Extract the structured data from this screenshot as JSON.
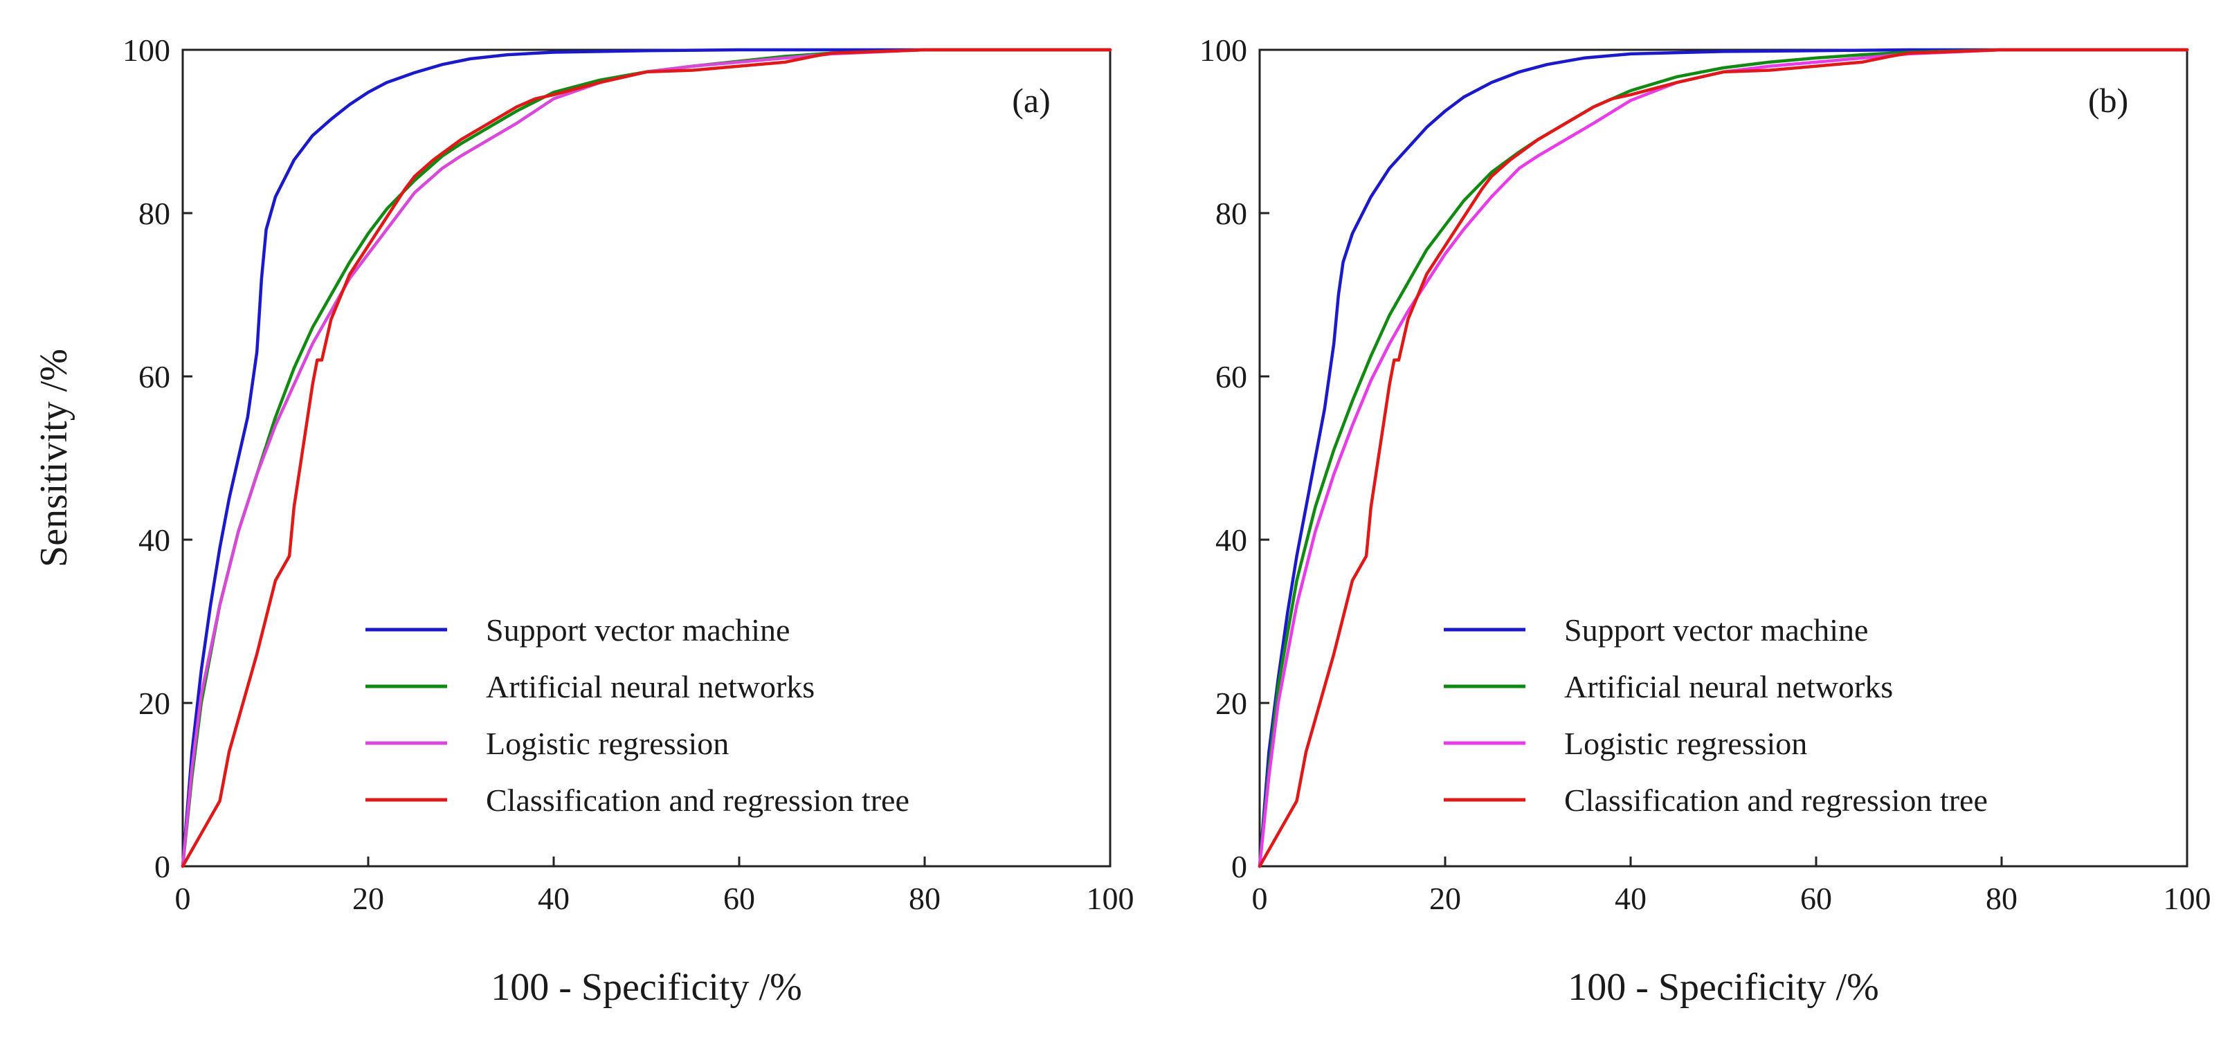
{
  "chart_data": [
    {
      "type": "line",
      "panel_label": "(a)",
      "xlabel": "100 - Specificity /%",
      "ylabel": "Sensitivity /%",
      "xlim": [
        0,
        100
      ],
      "ylim": [
        0,
        100
      ],
      "x_ticks": [
        "0",
        "20",
        "40",
        "60",
        "80",
        "100"
      ],
      "y_ticks": [
        "0",
        "20",
        "40",
        "60",
        "80",
        "100"
      ],
      "grid": false,
      "legend_position": "bottom-right",
      "series": [
        {
          "name": "Support vector machine",
          "color": "#1a1acc",
          "x": [
            0,
            1,
            2,
            3,
            4,
            5,
            6,
            7,
            8,
            8.5,
            9,
            10,
            12,
            14,
            16,
            18,
            20,
            22,
            25,
            28,
            31,
            35,
            40,
            50,
            60,
            70,
            80,
            90,
            100
          ],
          "y": [
            0,
            14,
            24,
            32,
            39,
            45,
            50,
            55,
            63,
            72,
            78,
            82,
            86.5,
            89.5,
            91.5,
            93.3,
            94.8,
            96,
            97.2,
            98.2,
            98.9,
            99.4,
            99.7,
            99.9,
            100,
            100,
            100,
            100,
            100
          ]
        },
        {
          "name": "Artificial neural networks",
          "color": "#108a10",
          "x": [
            0,
            1,
            2,
            4,
            6,
            8,
            10,
            12,
            14,
            16,
            18,
            20,
            22,
            25,
            28,
            30,
            33,
            36,
            40,
            45,
            50,
            55,
            60,
            65,
            70,
            80,
            90,
            100
          ],
          "y": [
            0,
            11,
            20,
            32,
            41,
            48,
            55,
            61,
            66,
            70,
            74,
            77.5,
            80.5,
            84,
            87,
            88.5,
            90.5,
            92.5,
            94.8,
            96.3,
            97.3,
            98,
            98.6,
            99.2,
            99.6,
            100,
            100,
            100
          ]
        },
        {
          "name": "Logistic regression",
          "color": "#d948d9",
          "x": [
            0,
            1,
            2,
            4,
            6,
            8,
            10,
            12,
            14,
            16,
            18,
            20,
            22,
            25,
            28,
            30,
            33,
            36,
            40,
            45,
            50,
            55,
            60,
            65,
            70,
            80,
            90,
            100
          ],
          "y": [
            0,
            12,
            21,
            32,
            41,
            48,
            54,
            59,
            64,
            68,
            72,
            75,
            78,
            82.5,
            85.5,
            87,
            89,
            91,
            94,
            96,
            97.3,
            98,
            98.5,
            99,
            99.5,
            100,
            100,
            100
          ]
        },
        {
          "name": "Classification and regression tree",
          "color": "#e01818",
          "x": [
            0,
            2,
            4,
            5,
            6,
            8,
            10,
            11.5,
            12,
            14,
            14.5,
            15,
            16,
            18,
            20,
            22,
            24,
            25,
            27,
            30,
            33,
            36,
            38,
            40,
            45,
            50,
            55,
            60,
            65,
            68,
            70,
            80,
            90,
            100
          ],
          "y": [
            0,
            4,
            8,
            14,
            18,
            26,
            35,
            38,
            44,
            59,
            62,
            62,
            67,
            72.5,
            76,
            79.5,
            83,
            84.5,
            86.5,
            89,
            91,
            93,
            94,
            94.5,
            96,
            97.3,
            97.5,
            98,
            98.5,
            99.2,
            99.6,
            100,
            100,
            100
          ]
        }
      ]
    },
    {
      "type": "line",
      "panel_label": "(b)",
      "xlabel": "100 - Specificity /%",
      "ylabel": "",
      "xlim": [
        0,
        100
      ],
      "ylim": [
        0,
        100
      ],
      "x_ticks": [
        "0",
        "20",
        "40",
        "60",
        "80",
        "100"
      ],
      "y_ticks": [
        "0",
        "20",
        "40",
        "60",
        "80",
        "100"
      ],
      "grid": false,
      "legend_position": "bottom-right",
      "series": [
        {
          "name": "Support vector machine",
          "color": "#1a1acc",
          "x": [
            0,
            1,
            2,
            3,
            4,
            5,
            6,
            7,
            8,
            8.5,
            9,
            10,
            12,
            14,
            16,
            18,
            20,
            22,
            25,
            28,
            31,
            35,
            40,
            50,
            60,
            70,
            80,
            90,
            100
          ],
          "y": [
            0,
            14,
            23,
            31,
            38,
            44,
            50,
            56,
            64,
            70,
            74,
            77.5,
            82,
            85.5,
            88,
            90.5,
            92.5,
            94.2,
            96,
            97.3,
            98.2,
            99,
            99.5,
            99.8,
            99.9,
            100,
            100,
            100,
            100
          ]
        },
        {
          "name": "Artificial neural networks",
          "color": "#108a10",
          "x": [
            0,
            1,
            2,
            4,
            6,
            8,
            10,
            12,
            14,
            16,
            18,
            20,
            22,
            25,
            28,
            30,
            33,
            36,
            40,
            45,
            50,
            55,
            60,
            65,
            70,
            80,
            90,
            100
          ],
          "y": [
            0,
            12,
            22,
            35,
            44,
            51,
            57,
            62.5,
            67.5,
            71.5,
            75.5,
            78.5,
            81.5,
            85,
            87.5,
            89,
            91,
            93,
            95,
            96.7,
            97.8,
            98.5,
            99,
            99.4,
            99.7,
            100,
            100,
            100
          ]
        },
        {
          "name": "Logistic regression",
          "color": "#e83ce8",
          "x": [
            0,
            1,
            2,
            4,
            6,
            8,
            10,
            12,
            14,
            16,
            18,
            20,
            22,
            25,
            28,
            30,
            33,
            36,
            40,
            45,
            50,
            55,
            60,
            65,
            70,
            80,
            90,
            100
          ],
          "y": [
            0,
            11,
            20,
            32,
            41,
            48,
            54,
            59.5,
            64,
            68,
            71.5,
            75,
            78,
            82,
            85.5,
            87,
            89,
            91,
            93.8,
            96,
            97.3,
            98,
            98.5,
            99,
            99.5,
            100,
            100,
            100
          ]
        },
        {
          "name": "Classification and regression tree",
          "color": "#e01818",
          "x": [
            0,
            2,
            4,
            5,
            6,
            8,
            10,
            11.5,
            12,
            14,
            14.5,
            15,
            16,
            18,
            20,
            22,
            24,
            25,
            27,
            30,
            33,
            36,
            38,
            40,
            45,
            50,
            55,
            60,
            65,
            68,
            70,
            80,
            90,
            100
          ],
          "y": [
            0,
            4,
            8,
            14,
            18,
            26,
            35,
            38,
            44,
            59,
            62,
            62,
            67,
            72.5,
            76,
            79.5,
            83,
            84.5,
            86.5,
            89,
            91,
            93,
            94,
            94.5,
            96,
            97.3,
            97.5,
            98,
            98.5,
            99.2,
            99.6,
            100,
            100,
            100
          ]
        }
      ]
    }
  ]
}
